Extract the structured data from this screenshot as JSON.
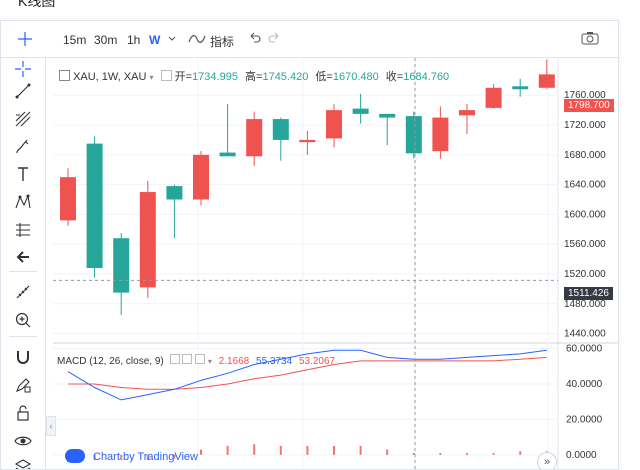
{
  "page": {
    "top_caption": "K线图"
  },
  "toolbar": {
    "intervals": [
      {
        "label": "15m",
        "active": false
      },
      {
        "label": "30m",
        "active": false
      },
      {
        "label": "1h",
        "active": false
      },
      {
        "label": "W",
        "active": true
      }
    ],
    "indicators_label": "指标",
    "icons": [
      "crosshair-icon",
      "chevron-down-icon",
      "indicators-icon",
      "undo-icon",
      "redo-icon",
      "camera-icon"
    ]
  },
  "leftbar": {
    "tools": [
      "crosshair-icon",
      "trend-line-icon",
      "pitchfork-icon",
      "brush-icon",
      "text-icon",
      "pattern-icon",
      "measure-icon",
      "back-arrow-icon",
      "ruler-icon",
      "zoom-in-icon",
      "magnet-icon",
      "pencil-lock-icon",
      "lock-icon",
      "eye-icon",
      "layers-icon"
    ]
  },
  "legend": {
    "symbol": "XAU, 1W, XAU",
    "open_label": "开=",
    "open": "1734.995",
    "high_label": "高=",
    "high": "1745.420",
    "low_label": "低=",
    "low": "1670.480",
    "close_label": "收=",
    "close": "1684.760"
  },
  "price_axis": {
    "ticks": [
      "1760.000",
      "1720.000",
      "1680.000",
      "1640.000",
      "1600.000",
      "1560.000",
      "1520.000",
      "1480.000",
      "1440.000"
    ],
    "last_price": "1798.700",
    "last_price_color": "#ef5350",
    "crosshair_price": "1511.426"
  },
  "macd": {
    "label": "MACD (12, 26, close, 9)",
    "v1": "2.1668",
    "v1_color": "#ef5350",
    "v2": "55.3734",
    "v2_color": "#2962ff",
    "v3": "53.2067",
    "v3_color": "#ef5350",
    "ticks": [
      "60.0000",
      "40.0000",
      "20.0000",
      "0.0000"
    ]
  },
  "watermark": {
    "text": "Chart by TradingView"
  },
  "scroll_button": "»",
  "colors": {
    "up": "#26a69a",
    "down": "#ef5350",
    "macd_line": "#2962ff",
    "signal_line": "#ef5350"
  },
  "chart_data": {
    "type": "candlestick",
    "ylim": [
      1430,
      1810
    ],
    "candles": [
      {
        "o": 1650,
        "h": 1662,
        "l": 1585,
        "c": 1592
      },
      {
        "o": 1528,
        "h": 1705,
        "l": 1515,
        "c": 1695
      },
      {
        "o": 1495,
        "h": 1575,
        "l": 1465,
        "c": 1568
      },
      {
        "o": 1630,
        "h": 1645,
        "l": 1488,
        "c": 1502
      },
      {
        "o": 1620,
        "h": 1640,
        "l": 1568,
        "c": 1638
      },
      {
        "o": 1680,
        "h": 1685,
        "l": 1612,
        "c": 1620
      },
      {
        "o": 1678,
        "h": 1748,
        "l": 1680,
        "c": 1683
      },
      {
        "o": 1728,
        "h": 1738,
        "l": 1665,
        "c": 1678
      },
      {
        "o": 1700,
        "h": 1730,
        "l": 1672,
        "c": 1728
      },
      {
        "o": 1700,
        "h": 1712,
        "l": 1680,
        "c": 1697
      },
      {
        "o": 1740,
        "h": 1748,
        "l": 1690,
        "c": 1702
      },
      {
        "o": 1735,
        "h": 1762,
        "l": 1722,
        "c": 1742
      },
      {
        "o": 1730,
        "h": 1735,
        "l": 1693,
        "c": 1735
      },
      {
        "o": 1682,
        "h": 1738,
        "l": 1675,
        "c": 1732
      },
      {
        "o": 1730,
        "h": 1745,
        "l": 1675,
        "c": 1685
      },
      {
        "o": 1740,
        "h": 1748,
        "l": 1708,
        "c": 1733
      },
      {
        "o": 1770,
        "h": 1775,
        "l": 1742,
        "c": 1743
      },
      {
        "o": 1768,
        "h": 1782,
        "l": 1758,
        "c": 1772
      },
      {
        "o": 1788,
        "h": 1808,
        "l": 1768,
        "c": 1770
      }
    ],
    "macd_ylim": [
      -8,
      62
    ],
    "macd_line": [
      47,
      38,
      31,
      34,
      37,
      42,
      46,
      51,
      54,
      57,
      59,
      59,
      55,
      54,
      54,
      55,
      56,
      57,
      59
    ],
    "signal_line": [
      40,
      40,
      38,
      37,
      37,
      38,
      40,
      43,
      45,
      48,
      51,
      53,
      53,
      53,
      53,
      53,
      53,
      54,
      55
    ],
    "histogram": [
      -4,
      -3,
      -3,
      -3,
      -2,
      3,
      5,
      6,
      5,
      5,
      5,
      5,
      3,
      1,
      1,
      1,
      1,
      2,
      2
    ]
  }
}
